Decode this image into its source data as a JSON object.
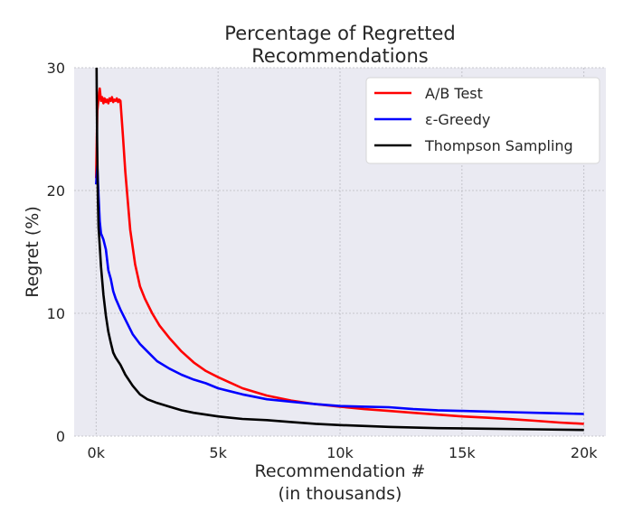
{
  "chart_data": {
    "type": "line",
    "title_lines": [
      "Percentage of Regretted",
      "Recommendations"
    ],
    "xlabel_lines": [
      "Recommendation #",
      "(in thousands)"
    ],
    "ylabel": "Regret (%)",
    "xlim": [
      -900,
      20900
    ],
    "ylim": [
      0,
      30
    ],
    "xticks": [
      0,
      5000,
      10000,
      15000,
      20000
    ],
    "xtick_labels": [
      "0k",
      "5k",
      "10k",
      "15k",
      "20k"
    ],
    "yticks": [
      0,
      10,
      20,
      30
    ],
    "ytick_labels": [
      "0",
      "10",
      "20",
      "30"
    ],
    "grid": true,
    "legend_position": "top-right",
    "series": [
      {
        "name": "A/B Test",
        "color": "#ff0000",
        "x": [
          0,
          50,
          100,
          150,
          200,
          250,
          300,
          350,
          400,
          450,
          500,
          550,
          600,
          650,
          700,
          750,
          800,
          850,
          900,
          950,
          1000,
          1100,
          1200,
          1400,
          1600,
          1800,
          2000,
          2300,
          2600,
          3000,
          3500,
          4000,
          4500,
          5000,
          6000,
          7000,
          8000,
          9000,
          10000,
          11000,
          12000,
          13000,
          14000,
          15000,
          16000,
          17000,
          18000,
          19000,
          20000
        ],
        "y": [
          21,
          26.5,
          27.5,
          28.3,
          27.3,
          27.6,
          27.1,
          27.5,
          27.2,
          27.4,
          27.1,
          27.5,
          27.3,
          27.6,
          27.2,
          27.4,
          27.3,
          27.5,
          27.2,
          27.4,
          27.3,
          24.5,
          21.5,
          16.8,
          14.0,
          12.2,
          11.2,
          10.0,
          9.0,
          8.0,
          6.9,
          6.0,
          5.3,
          4.8,
          3.9,
          3.3,
          2.9,
          2.6,
          2.4,
          2.2,
          2.05,
          1.9,
          1.75,
          1.6,
          1.5,
          1.38,
          1.25,
          1.1,
          1.0
        ]
      },
      {
        "name": "ε-Greedy",
        "color": "#0000ff",
        "x": [
          0,
          50,
          100,
          150,
          200,
          300,
          400,
          500,
          600,
          700,
          800,
          1000,
          1200,
          1500,
          1800,
          2100,
          2500,
          3000,
          3500,
          4000,
          4500,
          5000,
          6000,
          7000,
          8000,
          9000,
          10000,
          11000,
          12000,
          13000,
          14000,
          15000,
          16000,
          17000,
          18000,
          19000,
          20000
        ],
        "y": [
          20.5,
          22,
          19.5,
          17.5,
          16.5,
          16.0,
          15.2,
          13.5,
          12.8,
          11.8,
          11.2,
          10.3,
          9.5,
          8.3,
          7.5,
          6.9,
          6.1,
          5.5,
          5.0,
          4.6,
          4.3,
          3.9,
          3.4,
          3.0,
          2.8,
          2.6,
          2.45,
          2.4,
          2.35,
          2.2,
          2.1,
          2.05,
          2.0,
          1.95,
          1.9,
          1.85,
          1.8
        ]
      },
      {
        "name": "Thompson Sampling",
        "color": "#000000",
        "x": [
          0,
          20,
          40,
          70,
          100,
          150,
          200,
          300,
          400,
          500,
          600,
          700,
          800,
          1000,
          1200,
          1500,
          1800,
          2100,
          2500,
          3000,
          3500,
          4000,
          5000,
          6000,
          7000,
          8000,
          9000,
          10000,
          12000,
          14000,
          16000,
          18000,
          20000
        ],
        "y": [
          30,
          30,
          24,
          19.5,
          17.0,
          15.5,
          13.8,
          11.5,
          9.8,
          8.5,
          7.6,
          6.8,
          6.4,
          5.8,
          5.0,
          4.1,
          3.4,
          3.0,
          2.7,
          2.4,
          2.1,
          1.9,
          1.6,
          1.4,
          1.3,
          1.15,
          1.0,
          0.9,
          0.75,
          0.65,
          0.6,
          0.55,
          0.5
        ]
      }
    ]
  }
}
